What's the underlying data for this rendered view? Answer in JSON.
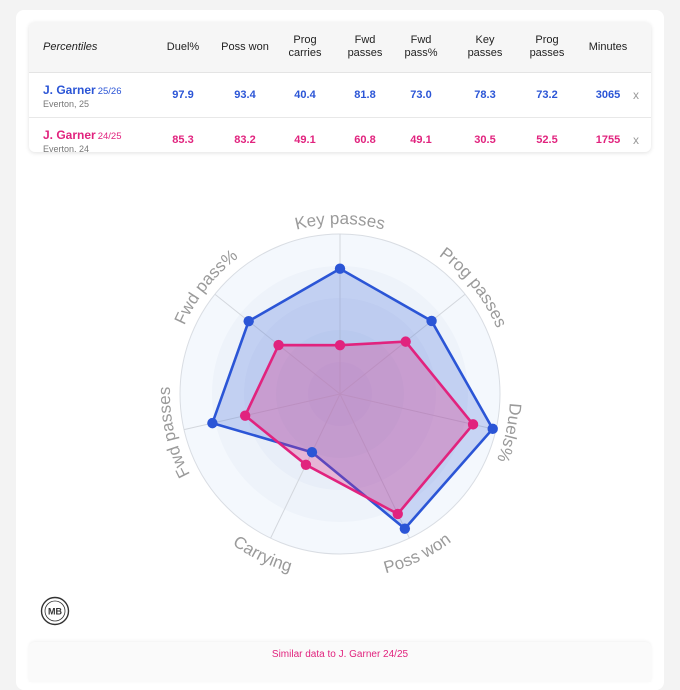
{
  "table": {
    "headers": [
      "Percentiles",
      "Duel%",
      "Poss won",
      "Prog carries",
      "Fwd passes",
      "Fwd pass%",
      "Key passes",
      "Prog passes",
      "Minutes"
    ],
    "rows": [
      {
        "name": "J. Garner",
        "season": "25/26",
        "club": "Everton, 25",
        "values": [
          "97.9",
          "93.4",
          "40.4",
          "81.8",
          "73.0",
          "78.3",
          "73.2",
          "3065"
        ],
        "remove": "x",
        "color": "#2b55d6"
      },
      {
        "name": "J. Garner",
        "season": "24/25",
        "club": "Everton, 24",
        "values": [
          "85.3",
          "83.2",
          "49.1",
          "60.8",
          "49.1",
          "30.5",
          "52.5",
          "1755"
        ],
        "remove": "x",
        "color": "#e1237e"
      }
    ]
  },
  "chart_data": {
    "type": "radar",
    "axes": [
      "Key passes",
      "Prog passes",
      "Duels%",
      "Poss won",
      "Carrying",
      "Fwd passes",
      "Fwd pass%"
    ],
    "range": [
      0,
      100
    ],
    "series": [
      {
        "name": "J. Garner 25/26",
        "color": "#2b55d6",
        "values": [
          78.3,
          73.2,
          97.9,
          93.4,
          40.4,
          81.8,
          73.0
        ]
      },
      {
        "name": "J. Garner 24/25",
        "color": "#e1237e",
        "values": [
          30.5,
          52.5,
          85.3,
          83.2,
          49.1,
          60.8,
          49.1
        ]
      }
    ]
  },
  "logo": {
    "text": "MB"
  },
  "similar": {
    "label": "Similar data to J. Garner 24/25"
  }
}
